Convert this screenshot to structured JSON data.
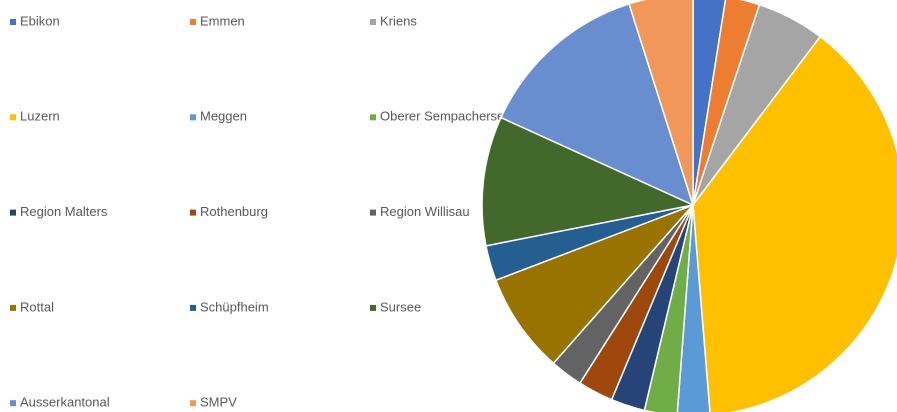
{
  "chart_data": {
    "type": "pie",
    "categories": [
      "Ebikon",
      "Emmen",
      "Kriens",
      "Luzern",
      "Meggen",
      "Oberer Sempachersee",
      "Region Malters",
      "Rothenburg",
      "Region Willisau",
      "Rottal",
      "Schüpfheim",
      "Sursee",
      "Ausserkantonal",
      "SMPV"
    ],
    "values": [
      2.5,
      2.6,
      5.2,
      38.4,
      2.5,
      2.5,
      2.6,
      2.7,
      2.5,
      7.7,
      2.7,
      9.9,
      13.3,
      4.9
    ],
    "colors": [
      "#4472c4",
      "#ed7d31",
      "#a5a5a5",
      "#ffc000",
      "#5b9bd5",
      "#70ad47",
      "#264478",
      "#9e480e",
      "#636363",
      "#997300",
      "#255e91",
      "#43682b",
      "#698ed0",
      "#f1975a"
    ],
    "legend": "left"
  }
}
